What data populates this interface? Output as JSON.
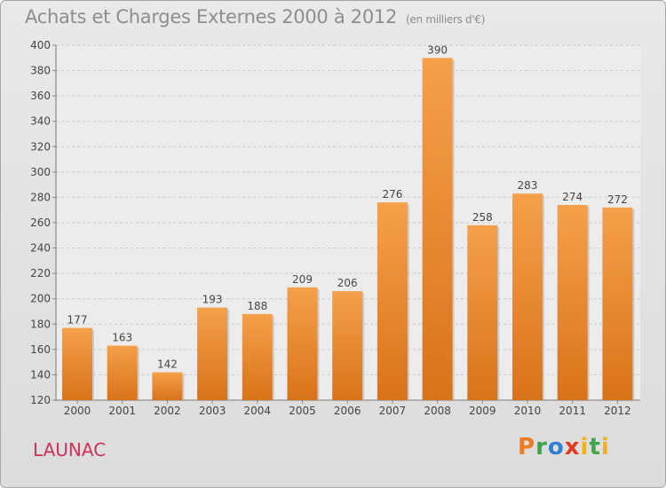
{
  "title": "Achats et Charges Externes 2000 à 2012",
  "unit": "(en milliers d'€)",
  "place": "LAUNAC",
  "logo_text": "Proxiti",
  "colors": {
    "bar": "#f5a04a",
    "bar_dark": "#d9731a",
    "place": "#cc3359",
    "title": "#8d8d8d"
  },
  "chart_data": {
    "type": "bar",
    "categories": [
      "2000",
      "2001",
      "2002",
      "2003",
      "2004",
      "2005",
      "2006",
      "2007",
      "2008",
      "2009",
      "2010",
      "2011",
      "2012"
    ],
    "values": [
      177,
      163,
      142,
      193,
      188,
      209,
      206,
      276,
      390,
      258,
      283,
      274,
      272
    ],
    "ylim": [
      120,
      400
    ],
    "yticks": [
      120,
      140,
      160,
      180,
      200,
      220,
      240,
      260,
      280,
      300,
      320,
      340,
      360,
      380,
      400
    ],
    "grid": "horizontal-dashed",
    "xlabel": "",
    "ylabel": ""
  }
}
